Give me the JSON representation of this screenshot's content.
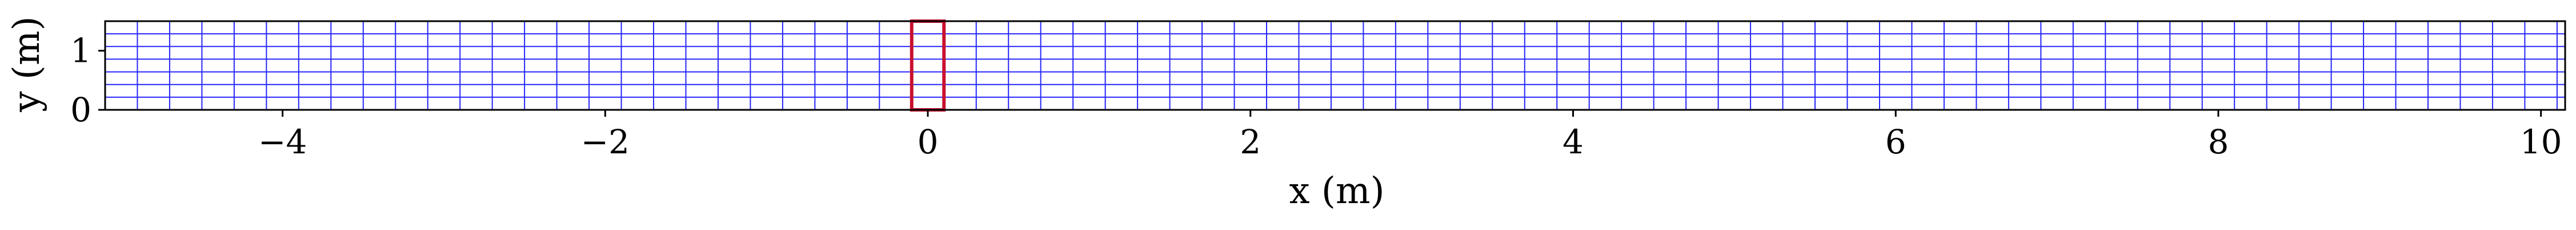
{
  "colors": {
    "grid": "#2626ff",
    "highlight": "#c8102e",
    "axis": "#000000",
    "background": "#ffffff"
  },
  "chart_data": {
    "type": "mesh",
    "xlabel": "x (m)",
    "ylabel": "y (m)",
    "xlim": [
      -5.1,
      10.15
    ],
    "ylim": [
      0,
      1.5
    ],
    "x_ticks": [
      -4,
      -2,
      0,
      2,
      4,
      6,
      8,
      10
    ],
    "x_tick_labels": [
      "−4",
      "−2",
      "0",
      "2",
      "4",
      "6",
      "8",
      "10"
    ],
    "y_ticks": [
      0,
      1
    ],
    "y_tick_labels": [
      "0",
      "1"
    ],
    "mesh": {
      "x_start": -5.1,
      "x_end": 10.15,
      "x_spacing": 0.2,
      "y_start": 0,
      "y_end": 1.5,
      "y_count": 7
    },
    "highlighted_cell": {
      "x0": -0.1,
      "x1": 0.1,
      "y0": 0,
      "y1": 1.5
    },
    "grid": true,
    "legend": "none"
  }
}
